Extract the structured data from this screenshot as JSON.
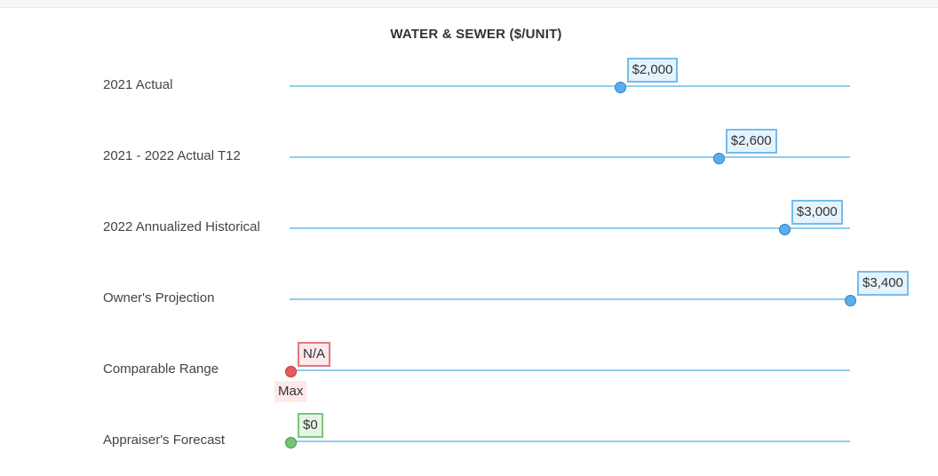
{
  "header": {
    "title": "WATER & SEWER ($/UNIT)"
  },
  "colors": {
    "blue_line": "#8ecdf3",
    "blue_dot_fill": "#5aaeee",
    "blue_dot_border": "#2f7fc6",
    "blue_tag_bg": "#e5f3fd",
    "blue_tag_border": "#76bcec",
    "red_dot_fill": "#e45c5c",
    "red_dot_border": "#c03a3a",
    "red_tag_bg": "#fde8ea",
    "red_tag_border": "#e07a80",
    "red_sub_bg": "#fde8ea",
    "green_dot_fill": "#74c476",
    "green_dot_border": "#3f9a45",
    "green_tag_bg": "#e6f6e6",
    "green_tag_border": "#7cc47f"
  },
  "chart_data": {
    "type": "scatter",
    "title": "WATER & SEWER ($/UNIT)",
    "xlim": [
      0,
      3400
    ],
    "rows": [
      {
        "label": "2021 Actual",
        "value": 2000,
        "value_label": "$2,000",
        "color": "blue"
      },
      {
        "label": "2021 - 2022 Actual T12",
        "value": 2600,
        "value_label": "$2,600",
        "color": "blue"
      },
      {
        "label": "2022 Annualized Historical",
        "value": 3000,
        "value_label": "$3,000",
        "color": "blue"
      },
      {
        "label": "Owner's Projection",
        "value": 3400,
        "value_label": "$3,400",
        "color": "blue"
      },
      {
        "label": "Comparable Range",
        "value": 0,
        "value_label": "N/A",
        "sub_label": "Max",
        "color": "red"
      },
      {
        "label": "Appraiser's Forecast",
        "value": 0,
        "value_label": "$0",
        "color": "green"
      }
    ]
  }
}
